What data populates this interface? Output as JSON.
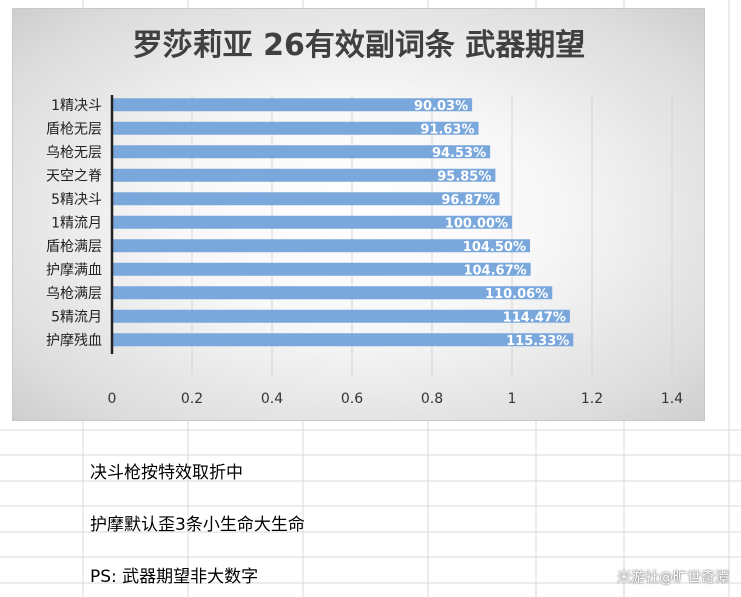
{
  "chart_data": {
    "type": "bar",
    "orientation": "horizontal",
    "title": "罗莎莉亚 26有效副词条 武器期望",
    "categories": [
      "1精决斗",
      "盾枪无层",
      "乌枪无层",
      "天空之脊",
      "5精决斗",
      "1精流月",
      "盾枪满层",
      "护摩满血",
      "乌枪满层",
      "5精流月",
      "护摩残血"
    ],
    "values": [
      0.9003,
      0.9163,
      0.9453,
      0.9585,
      0.9687,
      1.0,
      1.045,
      1.0467,
      1.1006,
      1.1447,
      1.1533
    ],
    "data_labels": [
      "90.03%",
      "91.63%",
      "94.53%",
      "95.85%",
      "96.87%",
      "100.00%",
      "104.50%",
      "104.67%",
      "110.06%",
      "114.47%",
      "115.33%"
    ],
    "xlim": [
      0,
      1.4
    ],
    "x_ticks": [
      "0",
      "0.2",
      "0.4",
      "0.6",
      "0.8",
      "1",
      "1.2",
      "1.4"
    ],
    "grid": "vertical",
    "legend": "none",
    "bar_color": "#7aa8dc"
  },
  "notes": [
    "决斗枪按特效取折中",
    "护摩默认歪3条小生命大生命",
    "PS: 武器期望非大数字"
  ],
  "watermark": "米游社@旷世奇潭"
}
